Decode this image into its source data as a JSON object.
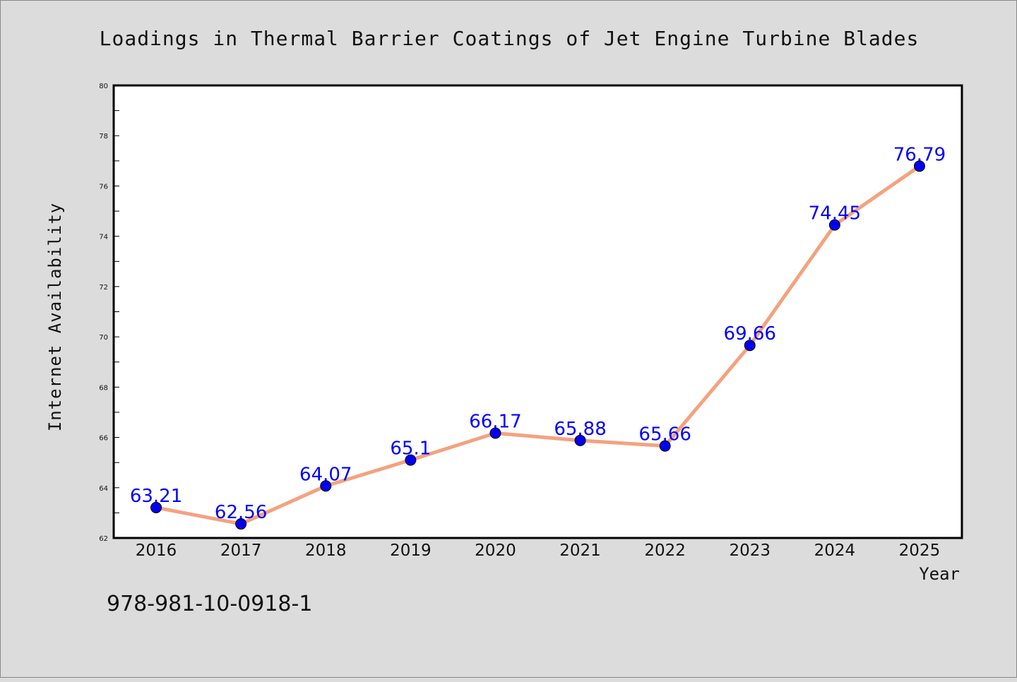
{
  "chart_data": {
    "type": "line",
    "title": "Loadings in Thermal Barrier Coatings of Jet Engine Turbine Blades",
    "xlabel": "Year",
    "ylabel": "Internet Availability",
    "categories": [
      "2016",
      "2017",
      "2018",
      "2019",
      "2020",
      "2021",
      "2022",
      "2023",
      "2024",
      "2025"
    ],
    "series": [
      {
        "values": [
          63.21,
          62.56,
          64.07,
          65.1,
          66.17,
          65.88,
          65.66,
          69.66,
          74.45,
          76.79
        ],
        "labels": [
          "63.21",
          "62.56",
          "64.07",
          "65.1",
          "66.17",
          "65.88",
          "65.66",
          "69.66",
          "74.45",
          "76.79"
        ]
      }
    ],
    "ylim": [
      62,
      80
    ],
    "yticks": [
      62,
      64,
      66,
      68,
      70,
      72,
      74,
      76,
      78,
      80
    ],
    "ytick_labels": [
      "62",
      "64",
      "66",
      "68",
      "70",
      "72",
      "74",
      "76",
      "78",
      "80"
    ],
    "grid": false,
    "legend": "none",
    "colors": {
      "line": "#f4a27e",
      "marker": "#0000ee",
      "label": "#0000ff",
      "background": "#dcdcdc",
      "plot_background": "#ffffff"
    }
  },
  "footer": {
    "isbn": "978-981-10-0918-1"
  }
}
